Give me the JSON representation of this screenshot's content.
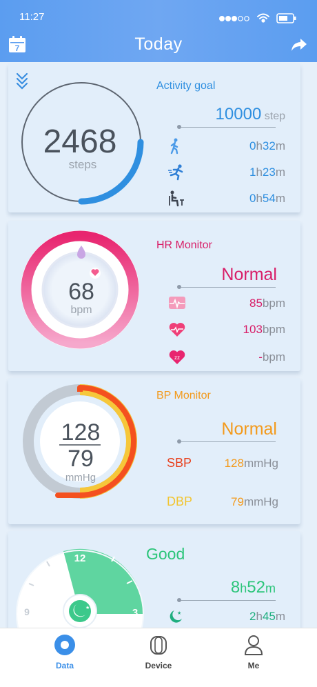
{
  "status_bar": {
    "time": "11:27"
  },
  "header": {
    "title": "Today",
    "calendar_day": "7"
  },
  "activity": {
    "steps": "2468",
    "steps_unit": "steps",
    "title": "Activity goal",
    "goal_value": "10000",
    "goal_unit": "step",
    "walk": {
      "h": "0",
      "m": "32"
    },
    "run": {
      "h": "1",
      "m": "23"
    },
    "sit": {
      "h": "0",
      "m": "54"
    },
    "progress_fraction": 0.25
  },
  "hr": {
    "value": "68",
    "unit": "bpm",
    "title": "HR Monitor",
    "status": "Normal",
    "ecg_value": "85",
    "heart_value": "103",
    "sleep_value": "-",
    "value_unit": "bpm"
  },
  "bp": {
    "sys": "128",
    "dia": "79",
    "unit": "mmHg",
    "title": "BP Monitor",
    "status": "Normal",
    "sbp_label": "SBP",
    "sbp_value": "128",
    "dbp_label": "DBP",
    "dbp_value": "79",
    "value_unit": "mmHg"
  },
  "sleep": {
    "title": "Good",
    "total_h": "8",
    "total_m": "52",
    "deep_h": "2",
    "deep_m": "45",
    "clock_12": "12",
    "clock_3": "3",
    "clock_9": "9"
  },
  "labels": {
    "h": "h",
    "m": "m"
  },
  "nav": {
    "data": "Data",
    "device": "Device",
    "me": "Me"
  },
  "colors": {
    "header": "#5b9df0",
    "activity": "#2f8fe0",
    "hr": "#e0206e",
    "bp": "#f39a1c",
    "sbp": "#e8411e",
    "dbp": "#f2c531",
    "sleep": "#2cc57a"
  }
}
